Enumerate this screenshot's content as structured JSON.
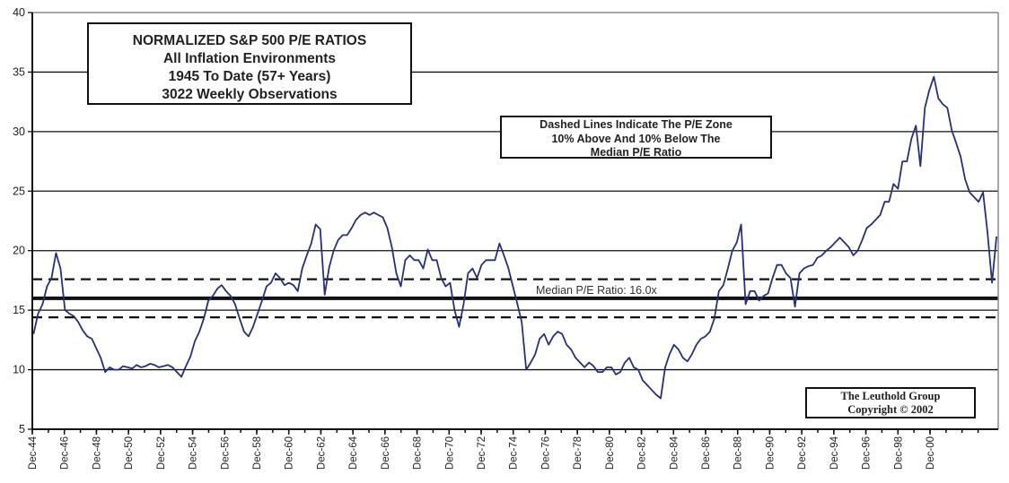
{
  "colors": {
    "series": "#27307a",
    "reference": "#111111",
    "grid": "#111111",
    "frame": "#8a8a8a"
  },
  "title_box": {
    "lines": [
      "NORMALIZED S&P 500 P/E RATIOS",
      "All Inflation Environments",
      "1945 To Date (57+ Years)",
      "3022 Weekly Observations"
    ]
  },
  "note_box": {
    "lines": [
      "Dashed Lines Indicate The P/E Zone",
      "10% Above And 10% Below The",
      "Median P/E Ratio"
    ]
  },
  "credit_box": {
    "lines": [
      "The Leuthold Group",
      "Copyright © 2002"
    ]
  },
  "chart_data": {
    "type": "line",
    "title": "NORMALIZED S&P 500 P/E RATIOS",
    "xlabel": "",
    "ylabel": "",
    "ylim": [
      5,
      40
    ],
    "y_ticks": [
      5,
      10,
      15,
      20,
      25,
      30,
      35,
      40
    ],
    "x_ticks": [
      "Dec-44",
      "Dec-46",
      "Dec-48",
      "Dec-50",
      "Dec-52",
      "Dec-54",
      "Dec-56",
      "Dec-58",
      "Dec-60",
      "Dec-62",
      "Dec-64",
      "Dec-66",
      "Dec-68",
      "Dec-70",
      "Dec-72",
      "Dec-74",
      "Dec-76",
      "Dec-78",
      "Dec-80",
      "Dec-82",
      "Dec-84",
      "Dec-86",
      "Dec-88",
      "Dec-90",
      "Dec-92",
      "Dec-94",
      "Dec-96",
      "Dec-98",
      "Dec-00"
    ],
    "grid": "horizontal",
    "reference_lines": [
      {
        "label": "Median P/E Ratio: 16.0x",
        "value": 16.0,
        "style": "solid-thick"
      },
      {
        "value": 17.6,
        "style": "dashed"
      },
      {
        "value": 14.4,
        "style": "dashed"
      }
    ],
    "series": [
      {
        "x": [
          1945.0,
          1945.28,
          1945.56,
          1945.84,
          1946.12,
          1946.4,
          1946.68,
          1946.96,
          1947.24,
          1947.51,
          1947.79,
          1948.07,
          1948.35,
          1948.63,
          1948.91,
          1949.19,
          1949.47,
          1949.75,
          1950.03,
          1950.31,
          1950.59,
          1950.87,
          1951.15,
          1951.43,
          1951.71,
          1951.99,
          1952.26,
          1952.54,
          1952.82,
          1953.1,
          1953.38,
          1953.66,
          1953.94,
          1954.22,
          1954.5,
          1954.78,
          1955.06,
          1955.34,
          1955.62,
          1955.9,
          1956.18,
          1956.46,
          1956.73,
          1957.01,
          1957.29,
          1957.57,
          1957.85,
          1958.13,
          1958.41,
          1958.69,
          1958.97,
          1959.25,
          1959.53,
          1959.81,
          1960.09,
          1960.37,
          1960.65,
          1960.93,
          1961.21,
          1961.48,
          1961.76,
          1962.04,
          1962.32,
          1962.6,
          1962.88,
          1963.16,
          1963.44,
          1963.72,
          1964.0,
          1964.28,
          1964.56,
          1964.84,
          1965.12,
          1965.4,
          1965.68,
          1965.96,
          1966.23,
          1966.51,
          1966.79,
          1967.07,
          1967.35,
          1967.63,
          1967.91,
          1968.19,
          1968.47,
          1968.75,
          1969.03,
          1969.31,
          1969.59,
          1969.87,
          1970.15,
          1970.43,
          1970.7,
          1970.98,
          1971.26,
          1971.54,
          1971.82,
          1972.1,
          1972.38,
          1972.66,
          1972.94,
          1973.22,
          1973.5,
          1973.78,
          1974.06,
          1974.34,
          1974.62,
          1974.9,
          1975.18,
          1975.45,
          1975.73,
          1976.01,
          1976.29,
          1976.57,
          1976.85,
          1977.13,
          1977.41,
          1977.69,
          1977.97,
          1978.25,
          1978.53,
          1978.81,
          1979.09,
          1979.37,
          1979.65,
          1979.93,
          1980.2,
          1980.48,
          1980.76,
          1981.04,
          1981.32,
          1981.6,
          1981.88,
          1982.16,
          1982.44,
          1982.72,
          1983.0,
          1983.28,
          1983.56,
          1983.84,
          1984.12,
          1984.4,
          1984.67,
          1984.95,
          1985.23,
          1985.51,
          1985.79,
          1986.07,
          1986.35,
          1986.63,
          1986.91,
          1987.19,
          1987.47,
          1987.75,
          1988.03,
          1988.31,
          1988.59,
          1988.87,
          1989.14,
          1989.42,
          1989.7,
          1989.98,
          1990.26,
          1990.54,
          1990.82,
          1991.1,
          1991.38,
          1991.66,
          1991.94,
          1992.22,
          1992.5,
          1992.78,
          1993.06,
          1993.34,
          1993.62,
          1993.89,
          1994.17,
          1994.45,
          1994.73,
          1995.01,
          1995.29,
          1995.57,
          1995.85,
          1996.13,
          1996.41,
          1996.69,
          1996.97,
          1997.25,
          1997.53,
          1997.81,
          1998.09,
          1998.36,
          1998.64,
          1998.92,
          1999.2,
          1999.48,
          1999.76,
          2000.04,
          2000.32,
          2000.6,
          2000.88,
          2001.16,
          2001.44,
          2001.72,
          2002.0,
          2002.28,
          2002.56,
          2002.83,
          2003.11,
          2003.39,
          2003.67,
          2003.95,
          2004.23,
          2004.51,
          2004.79,
          2005.07
        ],
        "y": [
          13.0,
          14.7,
          15.5,
          17.0,
          17.7,
          19.8,
          18.5,
          15.0,
          14.7,
          14.5,
          14.0,
          13.3,
          12.8,
          12.6,
          11.8,
          11.0,
          9.8,
          10.2,
          10.0,
          10.0,
          10.3,
          10.2,
          10.1,
          10.4,
          10.2,
          10.3,
          10.5,
          10.4,
          10.2,
          10.3,
          10.4,
          10.2,
          9.8,
          9.4,
          10.3,
          11.1,
          12.4,
          13.2,
          14.3,
          15.8,
          16.2,
          16.8,
          17.1,
          16.6,
          16.2,
          15.5,
          14.3,
          13.2,
          12.8,
          13.6,
          14.7,
          15.8,
          17.0,
          17.3,
          18.1,
          17.7,
          17.1,
          17.3,
          17.1,
          16.6,
          18.5,
          19.6,
          20.6,
          22.2,
          21.8,
          16.3,
          18.6,
          20.0,
          20.9,
          21.3,
          21.3,
          21.9,
          22.6,
          23.0,
          23.2,
          23.0,
          23.2,
          23.0,
          22.8,
          21.9,
          20.3,
          18.1,
          17.0,
          19.2,
          19.6,
          19.2,
          19.2,
          18.5,
          20.1,
          19.2,
          19.2,
          17.7,
          17.0,
          17.3,
          15.0,
          13.6,
          15.5,
          18.1,
          18.5,
          17.7,
          18.8,
          19.2,
          19.2,
          19.2,
          20.6,
          19.6,
          18.5,
          17.0,
          15.5,
          14.0,
          10.0,
          10.6,
          11.3,
          12.6,
          13.0,
          12.1,
          12.8,
          13.2,
          13.0,
          12.1,
          11.7,
          11.0,
          10.6,
          10.2,
          10.6,
          10.3,
          9.8,
          9.8,
          10.2,
          10.2,
          9.6,
          9.8,
          10.6,
          11.0,
          10.2,
          10.0,
          9.1,
          8.7,
          8.3,
          7.9,
          7.6,
          10.2,
          11.3,
          12.1,
          11.7,
          11.0,
          10.7,
          11.3,
          12.1,
          12.6,
          12.8,
          13.2,
          14.3,
          16.6,
          17.1,
          18.5,
          20.0,
          20.7,
          22.2,
          15.5,
          16.6,
          16.6,
          15.8,
          16.2,
          16.4,
          17.7,
          18.8,
          18.8,
          18.1,
          17.7,
          15.3,
          18.1,
          18.5,
          18.7,
          18.8,
          19.4,
          19.6,
          20.0,
          20.3,
          20.7,
          21.1,
          20.7,
          20.3,
          19.6,
          20.0,
          20.9,
          21.9,
          22.2,
          22.6,
          23.0,
          24.1,
          24.1,
          25.6,
          25.2,
          27.5,
          27.5,
          29.4,
          30.5,
          27.1,
          32.0,
          33.5,
          34.6,
          32.8,
          32.3,
          32.0,
          30.1,
          29.0,
          27.9,
          26.0,
          24.9,
          24.5,
          24.1,
          24.9,
          21.5,
          17.3,
          21.2
        ]
      }
    ]
  }
}
